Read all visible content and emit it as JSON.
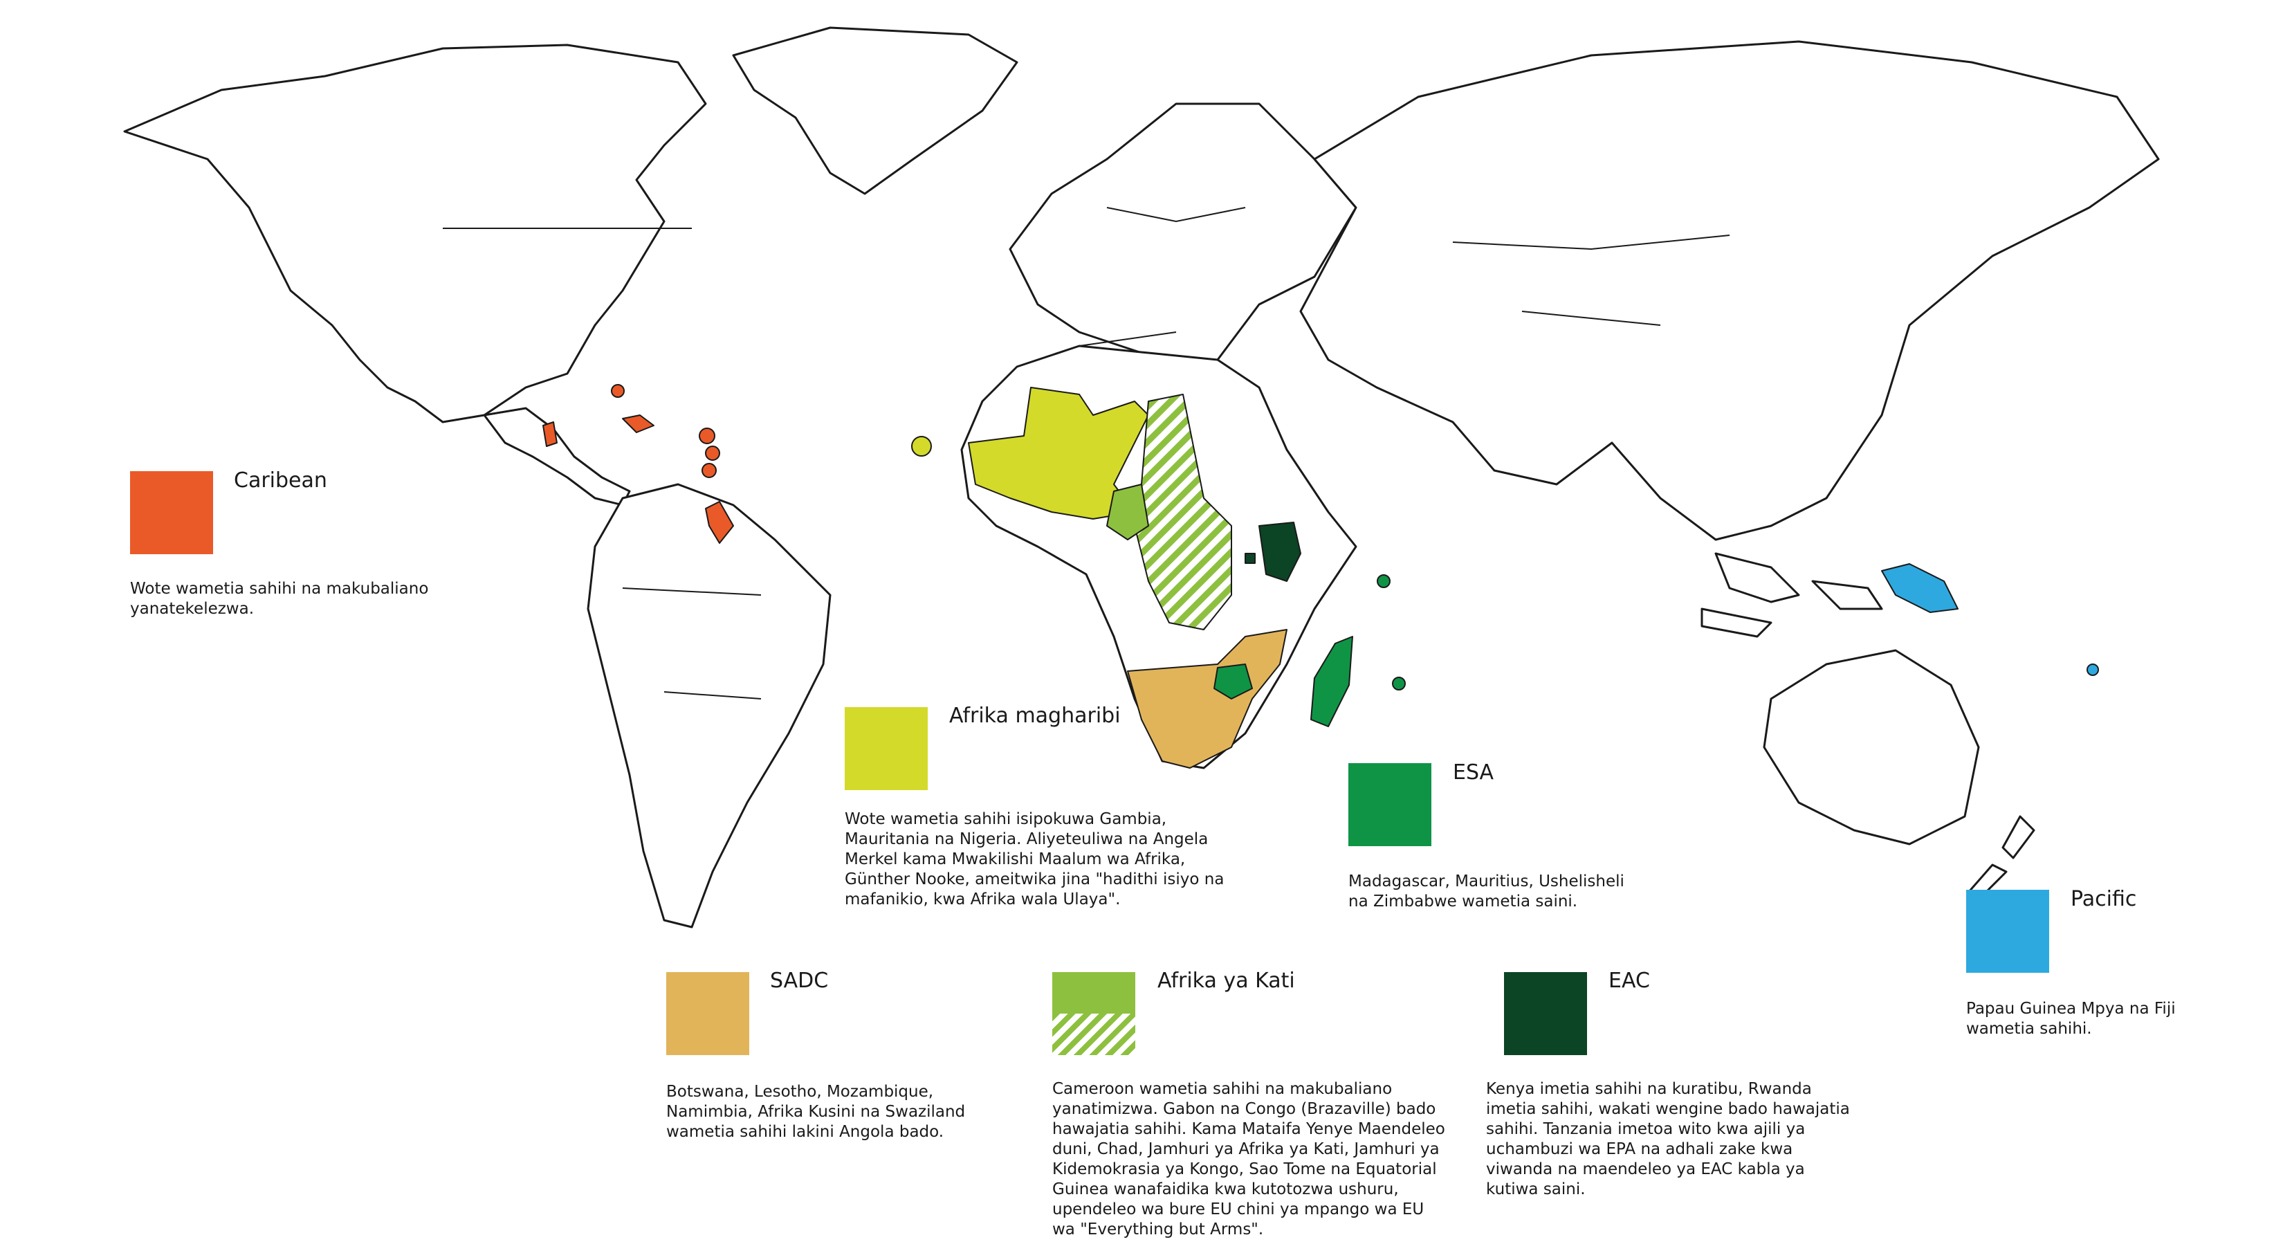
{
  "colors": {
    "caribean": "#ea5a28",
    "west_africa": "#d4da2a",
    "esa": "#0f9446",
    "pacific": "#2ea9e0",
    "sadc": "#e2b45a",
    "central_africa": "#8ec03f",
    "eac": "#0c4426"
  },
  "legend": {
    "caribean": {
      "title": "Caribean",
      "text": "Wote wametia sahihi na makubaliano yanatekelezwa."
    },
    "west_africa": {
      "title": "Afrika magharibi",
      "text": "Wote wametia sahihi isipokuwa Gambia, Mauritania na Nigeria. Aliyeteuliwa na Angela Merkel kama Mwakilishi Maalum wa Afrika, Günther Nooke, ameitwika jina \"hadithi isiyo na mafanikio, kwa Afrika wala Ulaya\"."
    },
    "esa": {
      "title": "ESA",
      "text": "Madagascar, Mauritius, Ushelisheli na Zimbabwe wametia saini."
    },
    "pacific": {
      "title": "Pacific",
      "text": "Papau Guinea Mpya na Fiji wametia sahihi."
    },
    "sadc": {
      "title": "SADC",
      "text": "Botswana, Lesotho, Mozambique, Namimbia, Afrika Kusini na Swaziland wametia sahihi lakini Angola bado."
    },
    "central_africa": {
      "title": "Afrika ya Kati",
      "text": "Cameroon wametia sahihi na makubaliano yanatimizwa. Gabon na Congo (Brazaville) bado hawajatia sahihi. Kama Mataifa Yenye Maendeleo duni, Chad, Jamhuri ya Afrika ya Kati, Jamhuri ya Kidemokrasia ya Kongo, Sao Tome na Equatorial Guinea wanafaidika kwa kutotozwa ushuru, upendeleo wa bure EU chini ya mpango wa EU wa \"Everything but Arms\"."
    },
    "eac": {
      "title": "EAC",
      "text": "Kenya imetia sahihi na kuratibu, Rwanda imetia sahihi, wakati wengine bado hawajatia sahihi. Tanzania imetoa wito kwa ajili ya uchambuzi wa EPA na adhali zake kwa viwanda na maendeleo ya EAC kabla ya kutiwa saini."
    }
  }
}
